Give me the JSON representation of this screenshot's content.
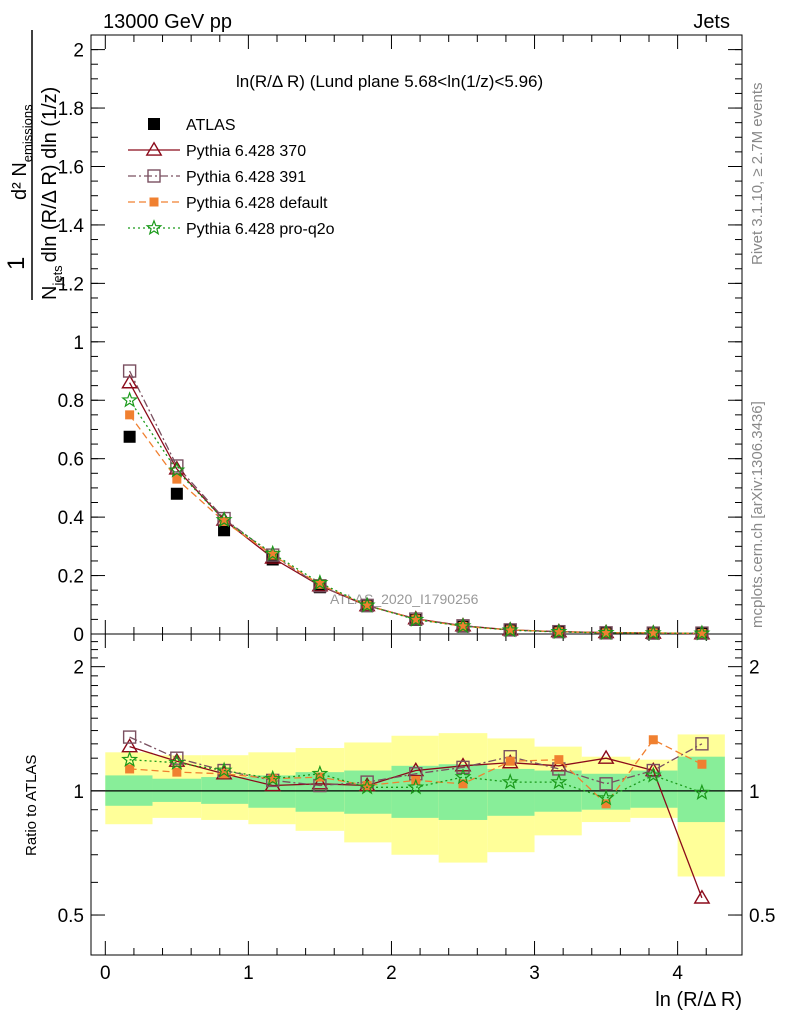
{
  "header": {
    "left": "13000 GeV pp",
    "right": "Jets"
  },
  "side_labels": {
    "rivet": "Rivet 3.1.10, ≥ 2.7M events",
    "mcplots": "mcplots.cern.ch [arXiv:1306.3436]"
  },
  "watermark": "ATLAS_2020_I1790256",
  "xlabel": "ln (R/Δ R)",
  "colors": {
    "atlas": "#000000",
    "p370": "#8b0a1a",
    "p391": "#7a5060",
    "pdefault": "#f08030",
    "pq2o": "#1a9a1a",
    "band_inner": "#88ee99",
    "band_outer": "#ffff99"
  },
  "chart_data": [
    {
      "type": "scatter",
      "panel": "main",
      "title": "ln(R/Δ R) (Lund plane 5.68<ln(1/z)<5.96)",
      "ylabel": "1/N_jets d²N_emissions / dln(R/Δ R) dln(1/z)",
      "ylabel_parts": {
        "num": "d² N",
        "num_sub": "emissions",
        "den": "N",
        "den_sub": "jets",
        "den_rest": "dln (R/Δ R) dln (1/z)"
      },
      "xlim": [
        -0.1,
        4.45
      ],
      "ylim": [
        0,
        2.05
      ],
      "y_ticks": [
        "0",
        "0.2",
        "0.4",
        "0.6",
        "0.8",
        "1",
        "1.2",
        "1.4",
        "1.6",
        "1.8",
        "2"
      ],
      "x": [
        0.17,
        0.5,
        0.83,
        1.17,
        1.5,
        1.83,
        2.17,
        2.5,
        2.83,
        3.17,
        3.5,
        3.83,
        4.17
      ],
      "series": [
        {
          "name": "ATLAS",
          "key": "atlas",
          "values": [
            0.675,
            0.48,
            0.355,
            0.255,
            0.16,
            0.095,
            0.048,
            0.025,
            0.012,
            0.007,
            0.004,
            0.003,
            0.002
          ]
        },
        {
          "name": "Pythia 6.428 370",
          "key": "p370",
          "values": [
            0.86,
            0.565,
            0.39,
            0.26,
            0.165,
            0.097,
            0.052,
            0.028,
            0.014,
            0.008,
            0.005,
            0.003,
            0.001
          ]
        },
        {
          "name": "Pythia 6.428 391",
          "key": "p391",
          "values": [
            0.9,
            0.575,
            0.395,
            0.27,
            0.165,
            0.098,
            0.051,
            0.028,
            0.014,
            0.008,
            0.004,
            0.003,
            0.003
          ]
        },
        {
          "name": "Pythia 6.428 default",
          "key": "pdefault",
          "values": [
            0.75,
            0.53,
            0.385,
            0.27,
            0.17,
            0.098,
            0.051,
            0.026,
            0.014,
            0.008,
            0.004,
            0.004,
            0.002
          ]
        },
        {
          "name": "Pythia 6.428 pro-q2o",
          "key": "pq2o",
          "values": [
            0.8,
            0.56,
            0.39,
            0.275,
            0.175,
            0.098,
            0.049,
            0.027,
            0.013,
            0.007,
            0.004,
            0.003,
            0.002
          ]
        }
      ],
      "legend_position": "top-left"
    },
    {
      "type": "line",
      "panel": "ratio",
      "ylabel": "Ratio to ATLAS",
      "xlabel": "ln (R/Δ R)",
      "xlim": [
        -0.1,
        4.45
      ],
      "ylim": [
        0.4,
        2.4
      ],
      "y_scale": "log",
      "y_ticks": [
        "0.5",
        "1",
        "2"
      ],
      "x_ticks": [
        "0",
        "1",
        "2",
        "3",
        "4"
      ],
      "reference_line": 1,
      "x": [
        0.17,
        0.5,
        0.83,
        1.17,
        1.5,
        1.83,
        2.17,
        2.5,
        2.83,
        3.17,
        3.5,
        3.83,
        4.17
      ],
      "bin_edges": [
        0,
        0.33,
        0.67,
        1.0,
        1.33,
        1.67,
        2.0,
        2.33,
        2.67,
        3.0,
        3.33,
        3.67,
        4.0,
        4.33
      ],
      "bands": {
        "inner_low": [
          0.92,
          0.94,
          0.93,
          0.91,
          0.89,
          0.88,
          0.86,
          0.85,
          0.87,
          0.89,
          0.9,
          0.91,
          0.84
        ],
        "inner_high": [
          1.09,
          1.07,
          1.08,
          1.09,
          1.11,
          1.12,
          1.15,
          1.16,
          1.13,
          1.12,
          1.1,
          1.12,
          1.21
        ],
        "outer_low": [
          0.83,
          0.86,
          0.85,
          0.83,
          0.8,
          0.75,
          0.7,
          0.67,
          0.71,
          0.78,
          0.84,
          0.86,
          0.62
        ],
        "outer_high": [
          1.24,
          1.22,
          1.22,
          1.24,
          1.27,
          1.31,
          1.36,
          1.38,
          1.34,
          1.28,
          1.21,
          1.19,
          1.37
        ]
      },
      "series": [
        {
          "name": "Pythia 6.428 370",
          "key": "p370",
          "values": [
            1.28,
            1.18,
            1.1,
            1.03,
            1.04,
            1.03,
            1.12,
            1.15,
            1.17,
            1.15,
            1.2,
            1.12,
            0.55
          ]
        },
        {
          "name": "Pythia 6.428 391",
          "key": "p391",
          "values": [
            1.35,
            1.2,
            1.12,
            1.06,
            1.03,
            1.05,
            1.1,
            1.14,
            1.21,
            1.13,
            1.04,
            1.12,
            1.3
          ]
        },
        {
          "name": "Pythia 6.428 default",
          "key": "pdefault",
          "values": [
            1.13,
            1.11,
            1.1,
            1.07,
            1.08,
            1.03,
            1.06,
            1.04,
            1.18,
            1.19,
            0.93,
            1.33,
            1.16
          ]
        },
        {
          "name": "Pythia 6.428 pro-q2o",
          "key": "pq2o",
          "values": [
            1.19,
            1.17,
            1.12,
            1.07,
            1.1,
            1.02,
            1.02,
            1.08,
            1.05,
            1.05,
            0.96,
            1.09,
            0.99
          ]
        }
      ]
    }
  ]
}
